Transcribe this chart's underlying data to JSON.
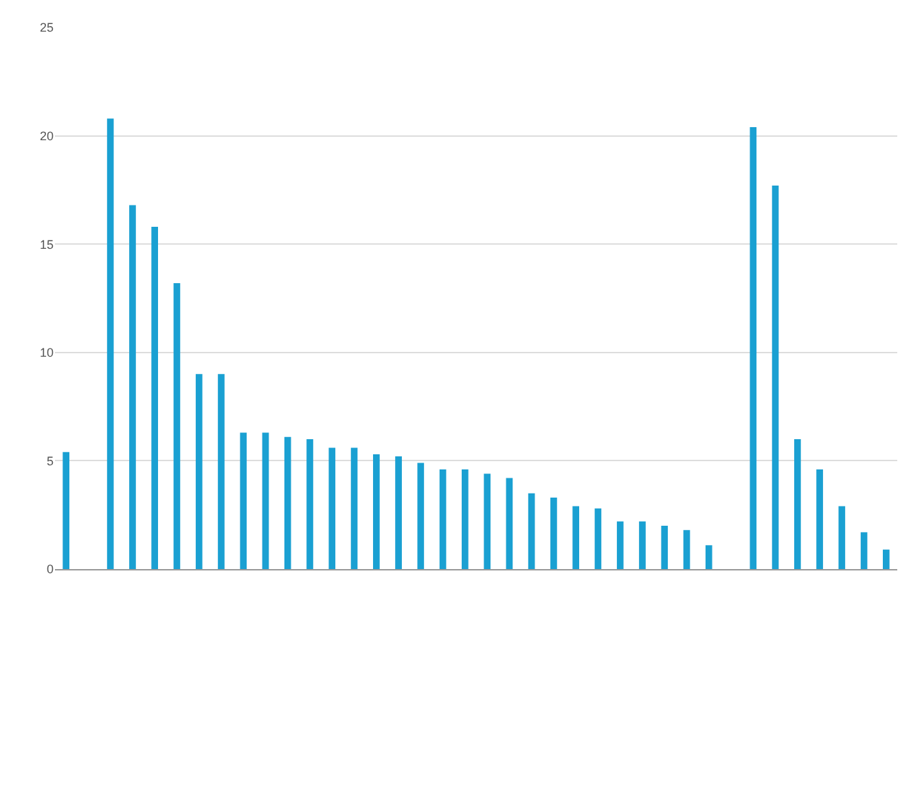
{
  "chart_data": {
    "type": "bar",
    "categories": [
      null,
      null,
      null,
      null,
      null,
      null,
      null,
      null,
      null,
      null,
      null,
      null,
      null,
      null,
      null,
      null,
      null,
      null,
      null,
      null,
      null,
      null,
      null,
      null,
      null,
      null,
      null,
      null,
      null,
      null,
      null,
      null,
      null,
      null,
      null,
      null,
      null,
      null
    ],
    "values": [
      5.4,
      null,
      20.8,
      16.8,
      15.8,
      13.2,
      9.0,
      9.0,
      6.3,
      6.3,
      6.1,
      6.0,
      5.6,
      5.6,
      5.3,
      5.2,
      4.9,
      4.6,
      4.6,
      4.4,
      4.2,
      3.5,
      3.3,
      2.9,
      2.8,
      2.2,
      2.2,
      2.0,
      1.8,
      1.1,
      null,
      20.4,
      17.7,
      6.0,
      4.6,
      2.9,
      1.7,
      0.9
    ],
    "color": "#1aa0d2",
    "ylim": [
      0,
      25
    ],
    "yticks": [
      0,
      5,
      10,
      15,
      20,
      25
    ],
    "grid": "y"
  }
}
